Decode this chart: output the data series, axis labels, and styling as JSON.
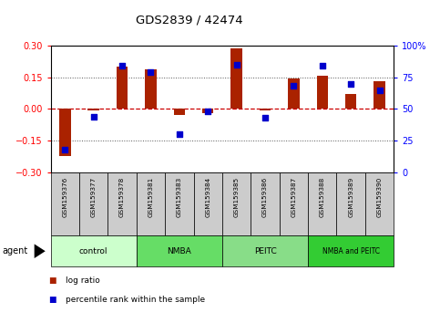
{
  "title": "GDS2839 / 42474",
  "samples": [
    "GSM159376",
    "GSM159377",
    "GSM159378",
    "GSM159381",
    "GSM159383",
    "GSM159384",
    "GSM159385",
    "GSM159386",
    "GSM159387",
    "GSM159388",
    "GSM159389",
    "GSM159390"
  ],
  "log_ratio": [
    -0.22,
    -0.005,
    0.2,
    0.185,
    -0.03,
    -0.02,
    0.285,
    -0.005,
    0.145,
    0.155,
    0.07,
    0.13
  ],
  "percentile_rank": [
    18,
    44,
    84,
    79,
    30,
    48,
    85,
    43,
    68,
    84,
    70,
    65
  ],
  "groups": [
    {
      "label": "control",
      "start": 0,
      "end": 3,
      "color": "#ccffcc"
    },
    {
      "label": "NMBA",
      "start": 3,
      "end": 6,
      "color": "#66dd66"
    },
    {
      "label": "PEITC",
      "start": 6,
      "end": 9,
      "color": "#88dd88"
    },
    {
      "label": "NMBA and PEITC",
      "start": 9,
      "end": 12,
      "color": "#33cc33"
    }
  ],
  "bar_color": "#aa2200",
  "dot_color": "#0000cc",
  "zero_line_color": "#cc0000",
  "dotted_line_color": "#555555",
  "ylim": [
    -0.3,
    0.3
  ],
  "y2lim": [
    0,
    100
  ],
  "yticks_left": [
    -0.3,
    -0.15,
    0,
    0.15,
    0.3
  ],
  "yticks_right": [
    0,
    25,
    50,
    75,
    100
  ],
  "ytick_labels_right": [
    "0",
    "25",
    "50",
    "75",
    "100%"
  ],
  "sample_box_color": "#cccccc",
  "agent_label": "agent",
  "legend": [
    {
      "label": "log ratio",
      "color": "#aa2200"
    },
    {
      "label": "percentile rank within the sample",
      "color": "#0000cc"
    }
  ]
}
